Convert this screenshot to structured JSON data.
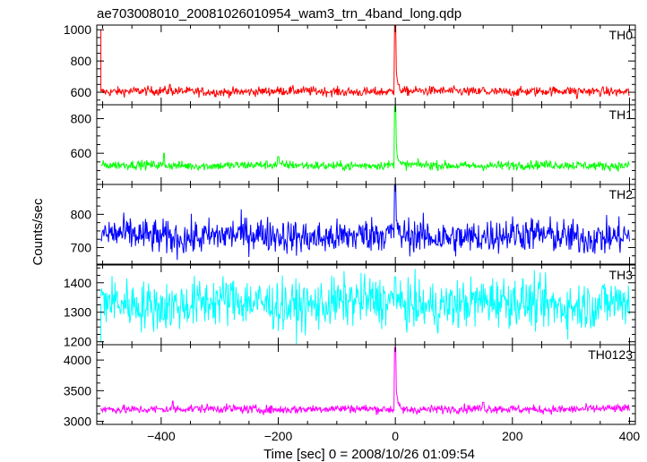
{
  "chart_data": {
    "type": "line",
    "title": "ae703008010_20081026010954_wam3_trn_4band_long.qdp",
    "xlabel": "Time [sec] 0 = 2008/10/26 01:09:54",
    "ylabel": "Counts/sec",
    "xlim": [
      -510,
      410
    ],
    "xticks": [
      -400,
      -200,
      0,
      200,
      400
    ],
    "grid": false,
    "panels": [
      {
        "name": "TH0",
        "color": "#ff0000",
        "ylim": [
          520,
          1030
        ],
        "yticks": [
          600,
          800,
          1000
        ],
        "baseline": 605,
        "noise": 16,
        "peak": 1025,
        "stub_left": 1000,
        "spikes": [
          [
            -385,
            650
          ],
          [
            150,
            630
          ],
          [
            310,
            560
          ]
        ]
      },
      {
        "name": "TH1",
        "color": "#00ff00",
        "ylim": [
          420,
          880
        ],
        "yticks": [
          600,
          800
        ],
        "baseline": 530,
        "noise": 14,
        "peak": 870,
        "stub_left": 0,
        "spikes": [
          [
            -395,
            600
          ],
          [
            -200,
            580
          ]
        ]
      },
      {
        "name": "TH2",
        "color": "#0000ff",
        "ylim": [
          650,
          890
        ],
        "yticks": [
          700,
          800
        ],
        "baseline": 735,
        "noise": 28,
        "peak": 890,
        "stub_left": 0,
        "spikes": []
      },
      {
        "name": "TH3",
        "color": "#00ffff",
        "ylim": [
          1190,
          1460
        ],
        "yticks": [
          1200,
          1300,
          1400
        ],
        "baseline": 1330,
        "noise": 45,
        "peak": 1420,
        "stub_left": 1200,
        "spikes": []
      },
      {
        "name": "TH0123",
        "color": "#ff00ff",
        "ylim": [
          2950,
          4250
        ],
        "yticks": [
          3000,
          3500,
          4000
        ],
        "baseline": 3200,
        "noise": 38,
        "peak": 4200,
        "stub_left": 0,
        "spikes": [
          [
            -380,
            3330
          ],
          [
            150,
            3310
          ]
        ]
      }
    ]
  }
}
